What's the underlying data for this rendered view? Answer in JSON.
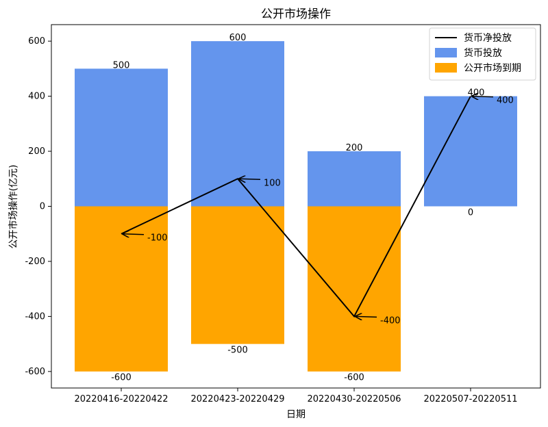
{
  "chart_data": {
    "type": "bar",
    "title": "公开市场操作",
    "xlabel": "日期",
    "ylabel": "公开市场操作(亿元)",
    "categories": [
      "20220416-20220422",
      "20220423-20220429",
      "20220430-20220506",
      "20220507-20220511"
    ],
    "ylim": [
      -660,
      660
    ],
    "yticks": [
      -600,
      -400,
      -200,
      0,
      200,
      400,
      600
    ],
    "ytick_labels": [
      "-600",
      "-400",
      "-200",
      "0",
      "200",
      "400",
      "600"
    ],
    "grid": false,
    "legend_position": "top-right",
    "series": [
      {
        "name": "货币投放",
        "type": "bar",
        "color": "#6495ED",
        "values": [
          500,
          600,
          200,
          400
        ],
        "labels": [
          "500",
          "600",
          "200",
          "400"
        ]
      },
      {
        "name": "公开市场到期",
        "type": "bar",
        "color": "#FFA500",
        "values": [
          -600,
          -500,
          -600,
          0
        ],
        "labels": [
          "-600",
          "-500",
          "-600",
          "0"
        ]
      },
      {
        "name": "货币净投放",
        "type": "line",
        "color": "#000000",
        "values": [
          -100,
          100,
          -400,
          400
        ],
        "labels": [
          "-100",
          "100",
          "-400",
          "400"
        ]
      }
    ]
  }
}
